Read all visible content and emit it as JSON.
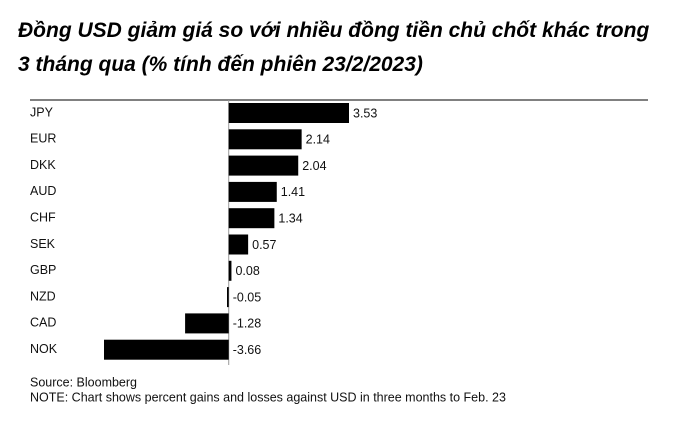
{
  "chart_data": {
    "type": "hbar",
    "title": "Đồng USD giảm giá so với nhiều đồng tiền chủ chốt khác trong 3 tháng qua (% tính đến phiên 23/2/2023)",
    "categories": [
      "JPY",
      "EUR",
      "DKK",
      "AUD",
      "CHF",
      "SEK",
      "GBP",
      "NZD",
      "CAD",
      "NOK"
    ],
    "values": [
      3.53,
      2.14,
      2.04,
      1.41,
      1.34,
      0.57,
      0.08,
      -0.05,
      -1.28,
      -3.66
    ],
    "color": "#000000",
    "xlim": [
      -3.66,
      3.53
    ],
    "source": "Source: Bloomberg",
    "note": "NOTE: Chart shows percent gains and losses against USD in three months to Feb. 23"
  }
}
